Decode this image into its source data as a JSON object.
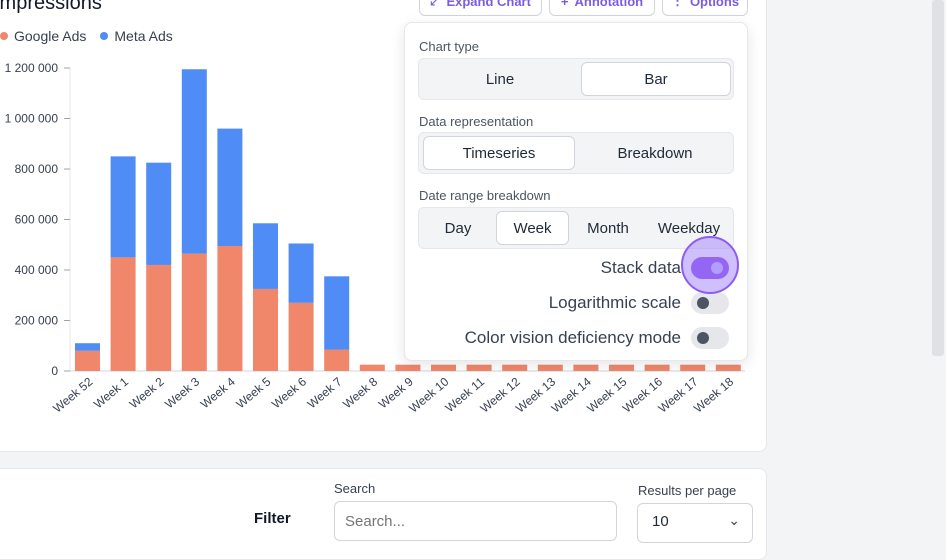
{
  "chart_card": {
    "title": "Impressions",
    "buttons": {
      "expand": "Expand Chart",
      "annotation": "Annotation",
      "options": "Options"
    }
  },
  "colors": {
    "google": "#f0876a",
    "meta": "#4f8cf6",
    "accent": "#7c3aed"
  },
  "chart_data": {
    "type": "bar",
    "stacked": true,
    "categories": [
      "Week 52",
      "Week 1",
      "Week 2",
      "Week 3",
      "Week 4",
      "Week 5",
      "Week 6",
      "Week 7",
      "Week 8",
      "Week 9",
      "Week 10",
      "Week 11",
      "Week 12",
      "Week 13",
      "Week 14",
      "Week 15",
      "Week 16",
      "Week 17",
      "Week 18"
    ],
    "series": [
      {
        "name": "Google Ads",
        "values": [
          80000,
          450000,
          420000,
          465000,
          495000,
          325000,
          270000,
          85000,
          25000,
          25000,
          25000,
          25000,
          25000,
          25000,
          25000,
          25000,
          25000,
          25000,
          25000
        ]
      },
      {
        "name": "Meta Ads",
        "values": [
          30000,
          400000,
          405000,
          730000,
          465000,
          260000,
          235000,
          290000,
          0,
          0,
          0,
          0,
          0,
          0,
          0,
          0,
          0,
          0,
          0
        ]
      }
    ],
    "yticks": [
      "0",
      "200 000",
      "400 000",
      "600 000",
      "800 000",
      "1 000 000",
      "1 200 000"
    ],
    "ylim": [
      0,
      1200000
    ],
    "legend_position": "top-left"
  },
  "options_panel": {
    "chart_type": {
      "label": "Chart type",
      "options": [
        "Line",
        "Bar"
      ],
      "selected": "Bar"
    },
    "data_representation": {
      "label": "Data representation",
      "options": [
        "Timeseries",
        "Breakdown"
      ],
      "selected": "Timeseries"
    },
    "date_range_breakdown": {
      "label": "Date range breakdown",
      "options": [
        "Day",
        "Week",
        "Month",
        "Weekday"
      ],
      "selected": "Week"
    },
    "toggles": {
      "stack": {
        "label": "Stack data",
        "on": true
      },
      "log": {
        "label": "Logarithmic scale",
        "on": false
      },
      "cvd": {
        "label": "Color vision deficiency mode",
        "on": false
      }
    }
  },
  "table_controls": {
    "filter_label": "Filter",
    "search_label": "Search",
    "search_placeholder": "Search...",
    "rpp_label": "Results per page",
    "rpp_value": "10"
  }
}
